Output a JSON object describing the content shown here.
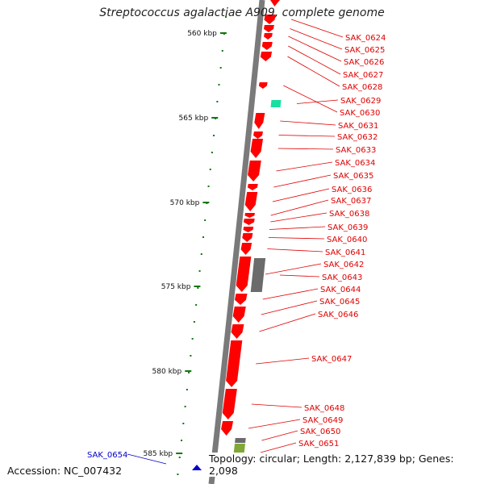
{
  "title": "Streptococcus agalactiae A909, complete genome",
  "footer": {
    "accession": "Accession: NC_007432",
    "topology": "Topology: circular; Length: 2,127,839 bp; Genes: 2,098"
  },
  "colors": {
    "backbone": "#7a7a7a",
    "gene_red": "#ff0000",
    "gene_gray": "#6b6b6b",
    "gene_teal": "#19e0a0",
    "gene_olive": "#7fa836",
    "tick_green": "#117711",
    "label_red": "#e00000",
    "label_blue": "#0000cc"
  },
  "axis": {
    "ticks": [
      {
        "kbp": 560,
        "label": "560 kbp"
      },
      {
        "kbp": 565,
        "label": "565 kbp"
      },
      {
        "kbp": 570,
        "label": "570 kbp"
      },
      {
        "kbp": 575,
        "label": "575 kbp"
      },
      {
        "kbp": 580,
        "label": "580 kbp"
      },
      {
        "kbp": 585,
        "label": "585 kbp"
      }
    ]
  },
  "genes": [
    {
      "name": "SAK_0624",
      "strand": "-",
      "color": "red"
    },
    {
      "name": "SAK_0625",
      "strand": "-",
      "color": "red"
    },
    {
      "name": "SAK_0626",
      "strand": "-",
      "color": "red"
    },
    {
      "name": "SAK_0627",
      "strand": "-",
      "color": "red"
    },
    {
      "name": "SAK_0628",
      "strand": "-",
      "color": "red"
    },
    {
      "name": "SAK_0629",
      "strand": "+",
      "color": "teal"
    },
    {
      "name": "SAK_0630",
      "strand": "-",
      "color": "red"
    },
    {
      "name": "SAK_0631",
      "strand": "-",
      "color": "red"
    },
    {
      "name": "SAK_0632",
      "strand": "-",
      "color": "red"
    },
    {
      "name": "SAK_0633",
      "strand": "-",
      "color": "red"
    },
    {
      "name": "SAK_0634",
      "strand": "-",
      "color": "red"
    },
    {
      "name": "SAK_0635",
      "strand": "-",
      "color": "red"
    },
    {
      "name": "SAK_0636",
      "strand": "-",
      "color": "red"
    },
    {
      "name": "SAK_0637",
      "strand": "-",
      "color": "red"
    },
    {
      "name": "SAK_0638",
      "strand": "-",
      "color": "red"
    },
    {
      "name": "SAK_0639",
      "strand": "-",
      "color": "red"
    },
    {
      "name": "SAK_0640",
      "strand": "-",
      "color": "red"
    },
    {
      "name": "SAK_0641",
      "strand": "-",
      "color": "red"
    },
    {
      "name": "SAK_0642",
      "strand": "-",
      "color": "red"
    },
    {
      "name": "SAK_0643",
      "strand": "+",
      "color": "gray"
    },
    {
      "name": "SAK_0644",
      "strand": "-",
      "color": "red"
    },
    {
      "name": "SAK_0645",
      "strand": "-",
      "color": "red"
    },
    {
      "name": "SAK_0646",
      "strand": "-",
      "color": "red"
    },
    {
      "name": "SAK_0647",
      "strand": "-",
      "color": "red"
    },
    {
      "name": "SAK_0648",
      "strand": "-",
      "color": "red"
    },
    {
      "name": "SAK_0649",
      "strand": "-",
      "color": "red"
    },
    {
      "name": "SAK_0650",
      "strand": "+",
      "color": "gray"
    },
    {
      "name": "SAK_0651",
      "strand": "+",
      "color": "olive"
    },
    {
      "name": "SAK_0654",
      "strand": "+",
      "color": "blue"
    }
  ]
}
